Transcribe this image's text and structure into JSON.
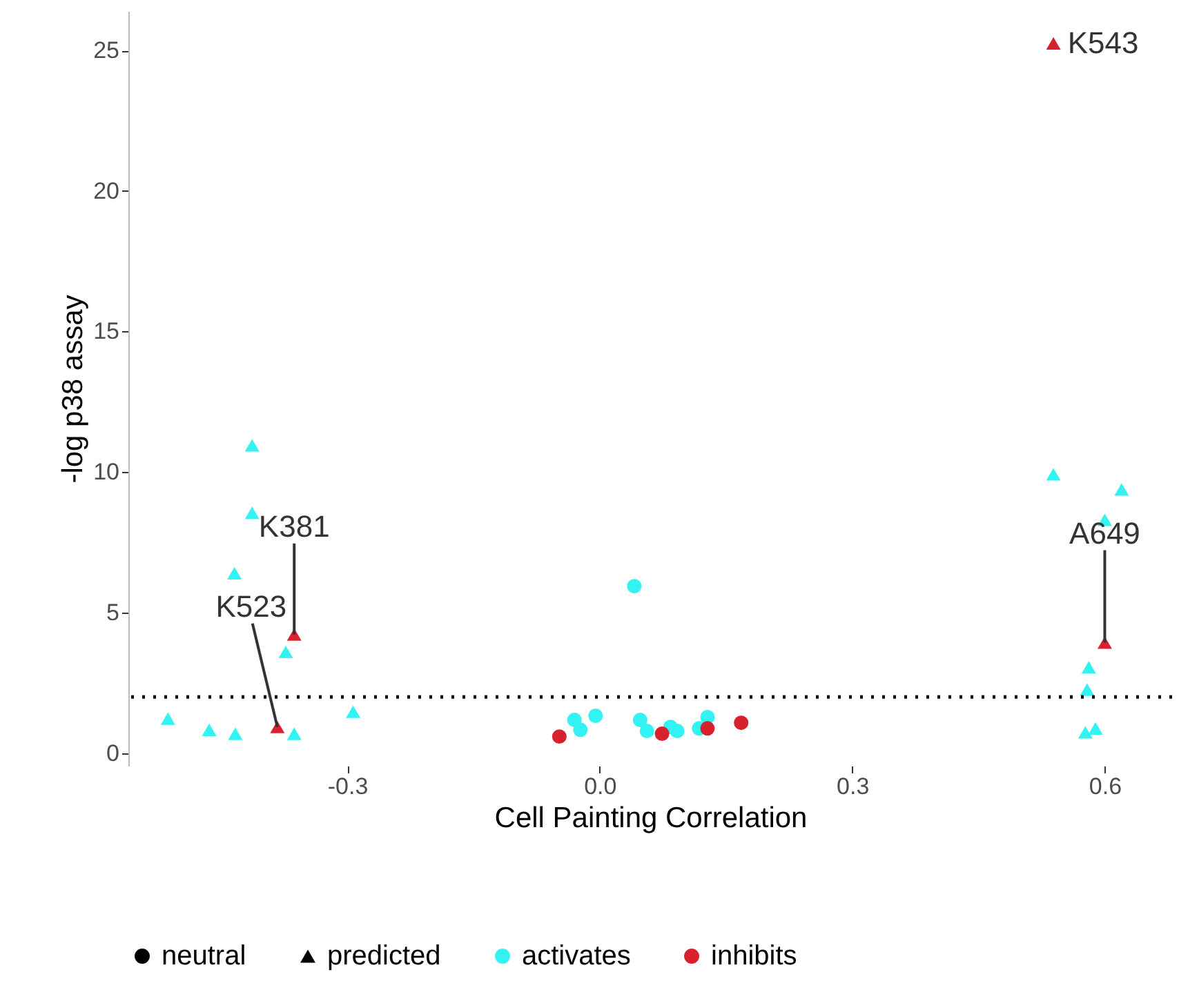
{
  "chart_data": {
    "type": "scatter",
    "xlabel": "Cell Painting Correlation",
    "ylabel": "-log p38 assay",
    "xlim": [
      -0.56,
      0.68
    ],
    "xticks": [
      {
        "value": -0.3,
        "label": "-0.3"
      },
      {
        "value": 0,
        "label": "0.0"
      },
      {
        "value": 0.3,
        "label": "0.3"
      },
      {
        "value": 0.6,
        "label": "0.6"
      }
    ],
    "ylim": [
      -0.45,
      26.4
    ],
    "yticks": [
      0,
      5,
      10,
      15,
      20,
      25
    ],
    "grid": false,
    "legend": "bottom",
    "series": [
      {
        "name": "neutral",
        "marker": "circle",
        "color": "#000000"
      },
      {
        "name": "predicted",
        "marker": "triangle",
        "color": "#000000"
      },
      {
        "name": "activates",
        "marker": "circle",
        "color": "#33f2f2",
        "x": [
          0.041,
          -0.03,
          -0.023,
          -0.005,
          0.048,
          0.056,
          0.084,
          0.092,
          0.118,
          0.128
        ],
        "values": [
          5.94,
          1.18,
          0.83,
          1.33,
          1.18,
          0.79,
          0.93,
          0.79,
          0.88,
          1.28
        ]
      },
      {
        "name": "inhibits",
        "marker": "circle",
        "color": "#d7222e",
        "x": [
          -0.048,
          0.074,
          0.128,
          0.168
        ],
        "values": [
          0.59,
          0.69,
          0.88,
          1.08
        ]
      },
      {
        "marker": "triangle",
        "color": "#33f2f2",
        "x": [
          -0.513,
          -0.464,
          -0.433,
          -0.434,
          -0.413,
          -0.413,
          -0.373,
          -0.363,
          -0.293,
          0.539,
          0.62,
          0.6,
          0.581,
          0.579,
          0.577,
          0.589
        ],
        "values": [
          1.23,
          0.83,
          0.69,
          6.4,
          10.95,
          8.55,
          3.6,
          0.69,
          1.47,
          9.92,
          9.38,
          8.3,
          3.05,
          2.26,
          0.74,
          0.88
        ]
      },
      {
        "marker": "triangle",
        "color": "#d7222e",
        "x": [
          -0.363,
          -0.383,
          0.6,
          0.539
        ],
        "values": [
          4.22,
          0.93,
          3.93,
          25.25
        ]
      }
    ],
    "ref_lines": [
      {
        "axis": "y",
        "value": 2,
        "line_style": "dotted",
        "color": "#000000"
      }
    ],
    "annotations": [
      {
        "text": "K543",
        "x": 0.539,
        "y": 25.25
      },
      {
        "text": "K381",
        "x": -0.363,
        "y": 4.22
      },
      {
        "text": "A649",
        "x": 0.6,
        "y": 3.93
      },
      {
        "text": "K523",
        "x": -0.383,
        "y": 0.93
      }
    ]
  }
}
